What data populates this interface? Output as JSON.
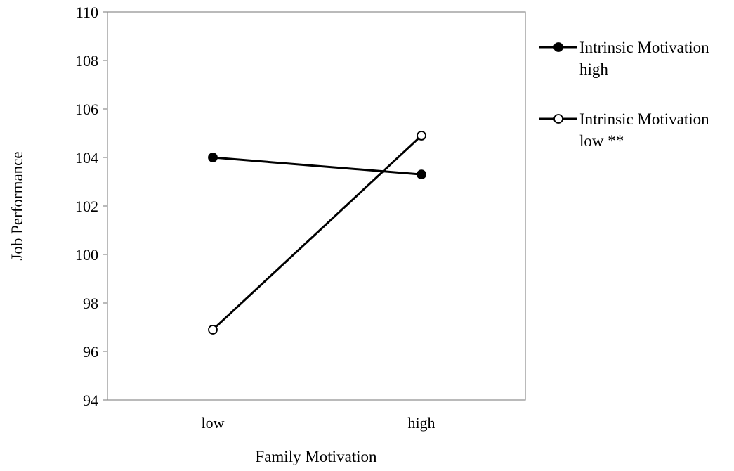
{
  "chart_data": {
    "type": "line",
    "title": "",
    "xlabel": "Family Motivation",
    "ylabel": "Job Performance",
    "categories": [
      "low",
      "high"
    ],
    "ylim": [
      94,
      110
    ],
    "yticks": [
      94,
      96,
      98,
      100,
      102,
      104,
      106,
      108,
      110
    ],
    "grid": false,
    "legend_position": "right",
    "series": [
      {
        "name": "Intrinsic Motivation high",
        "name_lines": [
          "Intrinsic Motivation",
          "high"
        ],
        "values": [
          104.0,
          103.3
        ],
        "marker": "filled-circle",
        "color": "#000000"
      },
      {
        "name": "Intrinsic Motivation low **",
        "name_lines": [
          "Intrinsic Motivation",
          "low **"
        ],
        "values": [
          96.9,
          104.9
        ],
        "marker": "open-circle",
        "color": "#000000"
      }
    ]
  }
}
